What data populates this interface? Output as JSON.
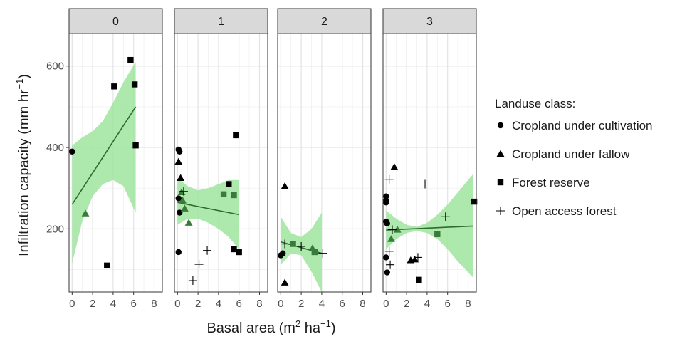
{
  "chart_data": {
    "type": "scatter",
    "xlabel": "Basal area (m",
    "xlabel_sup1": "2",
    "xlabel_mid": " ha",
    "xlabel_sup2": "−1",
    "xlabel_end": ")",
    "ylabel": "Infiltration capacity (mm hr",
    "ylabel_sup": "−1",
    "ylabel_end": ")",
    "xlim": [
      -0.3,
      8.8
    ],
    "ylim": [
      45,
      680
    ],
    "xticks": [
      0,
      2,
      4,
      6,
      8
    ],
    "yticks": [
      200,
      400,
      600
    ],
    "x_tick_labels": [
      "0",
      "2",
      "4",
      "6",
      "8"
    ],
    "y_tick_labels": [
      "200",
      "400",
      "600"
    ],
    "grid": true,
    "legend_position": "right",
    "legend": {
      "title": "Landuse class:",
      "entries": [
        {
          "name": "Cropland under cultivation",
          "shape": "circle"
        },
        {
          "name": "Cropland under fallow",
          "shape": "triangle"
        },
        {
          "name": "Forest reserve",
          "shape": "square"
        },
        {
          "name": "Open access forest",
          "shape": "plus"
        }
      ]
    },
    "colors": {
      "fit_line": "#2e6b2e",
      "ribbon": "#9fe59f",
      "strip_bg": "#d9d9d9",
      "point_black": "#000000",
      "point_green": "#3a7a3a"
    },
    "panels": [
      {
        "label": "0",
        "fit": {
          "x0": 0,
          "y0": 260,
          "x1": 6.2,
          "y1": 500
        },
        "ribbon": {
          "x": [
            0,
            1,
            2,
            3,
            4,
            5,
            6.2
          ],
          "lower": [
            115,
            220,
            280,
            310,
            320,
            305,
            240
          ],
          "upper": [
            405,
            425,
            440,
            465,
            510,
            560,
            610
          ]
        },
        "points": [
          {
            "x": 0,
            "y": 390,
            "shape": "circle",
            "color": "black"
          },
          {
            "x": 1.3,
            "y": 238,
            "shape": "triangle",
            "color": "green"
          },
          {
            "x": 3.4,
            "y": 110,
            "shape": "square",
            "color": "black"
          },
          {
            "x": 4.1,
            "y": 550,
            "shape": "square",
            "color": "black"
          },
          {
            "x": 5.7,
            "y": 615,
            "shape": "square",
            "color": "black"
          },
          {
            "x": 6.1,
            "y": 555,
            "shape": "square",
            "color": "black"
          },
          {
            "x": 6.2,
            "y": 405,
            "shape": "square",
            "color": "black"
          }
        ]
      },
      {
        "label": "1",
        "fit": {
          "x0": 0,
          "y0": 265,
          "x1": 6,
          "y1": 235
        },
        "ribbon": {
          "x": [
            0,
            1,
            2,
            3,
            4,
            5,
            6
          ],
          "lower": [
            210,
            225,
            225,
            215,
            200,
            180,
            150
          ],
          "upper": [
            325,
            305,
            295,
            300,
            310,
            320,
            320
          ]
        },
        "points": [
          {
            "x": 0.1,
            "y": 395,
            "shape": "circle",
            "color": "black"
          },
          {
            "x": 0.2,
            "y": 390,
            "shape": "circle",
            "color": "black"
          },
          {
            "x": 0.1,
            "y": 275,
            "shape": "circle",
            "color": "black"
          },
          {
            "x": 0.2,
            "y": 240,
            "shape": "circle",
            "color": "black"
          },
          {
            "x": 0.1,
            "y": 143,
            "shape": "circle",
            "color": "black"
          },
          {
            "x": 0.1,
            "y": 365,
            "shape": "triangle",
            "color": "black"
          },
          {
            "x": 0.3,
            "y": 325,
            "shape": "triangle",
            "color": "black"
          },
          {
            "x": 0.4,
            "y": 290,
            "shape": "triangle",
            "color": "green"
          },
          {
            "x": 0.5,
            "y": 270,
            "shape": "triangle",
            "color": "green"
          },
          {
            "x": 0.7,
            "y": 250,
            "shape": "triangle",
            "color": "green"
          },
          {
            "x": 1.1,
            "y": 215,
            "shape": "triangle",
            "color": "green"
          },
          {
            "x": 4.5,
            "y": 285,
            "shape": "square",
            "color": "green"
          },
          {
            "x": 5,
            "y": 310,
            "shape": "square",
            "color": "black"
          },
          {
            "x": 5.5,
            "y": 283,
            "shape": "square",
            "color": "green"
          },
          {
            "x": 5.5,
            "y": 150,
            "shape": "square",
            "color": "black"
          },
          {
            "x": 5.7,
            "y": 430,
            "shape": "square",
            "color": "black"
          },
          {
            "x": 6,
            "y": 143,
            "shape": "square",
            "color": "black"
          },
          {
            "x": 0.6,
            "y": 292,
            "shape": "plus",
            "color": "black"
          },
          {
            "x": 1.5,
            "y": 73,
            "shape": "plus",
            "color": "black"
          },
          {
            "x": 2.1,
            "y": 113,
            "shape": "plus",
            "color": "black"
          },
          {
            "x": 2.9,
            "y": 147,
            "shape": "plus",
            "color": "black"
          }
        ]
      },
      {
        "label": "2",
        "fit": {
          "x0": 0,
          "y0": 168,
          "x1": 4,
          "y1": 140
        },
        "ribbon": {
          "x": [
            0,
            1,
            2,
            3,
            4
          ],
          "lower": [
            112,
            140,
            135,
            95,
            45
          ],
          "upper": [
            230,
            190,
            180,
            200,
            240
          ]
        },
        "points": [
          {
            "x": 0,
            "y": 135,
            "shape": "circle",
            "color": "black"
          },
          {
            "x": 0.2,
            "y": 140,
            "shape": "circle",
            "color": "black"
          },
          {
            "x": 0.4,
            "y": 305,
            "shape": "triangle",
            "color": "black"
          },
          {
            "x": 0.4,
            "y": 68,
            "shape": "triangle",
            "color": "black"
          },
          {
            "x": 3.1,
            "y": 152,
            "shape": "triangle",
            "color": "green"
          },
          {
            "x": 1.2,
            "y": 163,
            "shape": "square",
            "color": "green"
          },
          {
            "x": 3.3,
            "y": 143,
            "shape": "square",
            "color": "green"
          },
          {
            "x": 0.4,
            "y": 163,
            "shape": "plus",
            "color": "black"
          },
          {
            "x": 2,
            "y": 157,
            "shape": "plus",
            "color": "black"
          },
          {
            "x": 4.1,
            "y": 140,
            "shape": "plus",
            "color": "black"
          }
        ]
      },
      {
        "label": "3",
        "fit": {
          "x0": 0,
          "y0": 197,
          "x1": 8.5,
          "y1": 207
        },
        "ribbon": {
          "x": [
            0,
            1,
            2,
            3,
            4,
            5,
            6,
            7,
            8.5
          ],
          "lower": [
            150,
            175,
            190,
            195,
            190,
            175,
            150,
            120,
            80
          ],
          "upper": [
            245,
            225,
            210,
            205,
            215,
            235,
            260,
            290,
            335
          ]
        },
        "points": [
          {
            "x": 0,
            "y": 280,
            "shape": "circle",
            "color": "black"
          },
          {
            "x": 0,
            "y": 270,
            "shape": "circle",
            "color": "black"
          },
          {
            "x": 0,
            "y": 265,
            "shape": "circle",
            "color": "black"
          },
          {
            "x": 0,
            "y": 218,
            "shape": "circle",
            "color": "black"
          },
          {
            "x": 0.1,
            "y": 213,
            "shape": "circle",
            "color": "black"
          },
          {
            "x": 0,
            "y": 130,
            "shape": "circle",
            "color": "black"
          },
          {
            "x": 0.1,
            "y": 93,
            "shape": "circle",
            "color": "black"
          },
          {
            "x": 0.8,
            "y": 352,
            "shape": "triangle",
            "color": "black"
          },
          {
            "x": 0.5,
            "y": 175,
            "shape": "triangle",
            "color": "green"
          },
          {
            "x": 1.1,
            "y": 198,
            "shape": "triangle",
            "color": "green"
          },
          {
            "x": 2.4,
            "y": 123,
            "shape": "triangle",
            "color": "black"
          },
          {
            "x": 2.8,
            "y": 125,
            "shape": "triangle",
            "color": "black"
          },
          {
            "x": 3.2,
            "y": 75,
            "shape": "square",
            "color": "black"
          },
          {
            "x": 5,
            "y": 187,
            "shape": "square",
            "color": "green"
          },
          {
            "x": 8.6,
            "y": 267,
            "shape": "square",
            "color": "black"
          },
          {
            "x": 0.3,
            "y": 322,
            "shape": "plus",
            "color": "black"
          },
          {
            "x": 0.3,
            "y": 145,
            "shape": "plus",
            "color": "black"
          },
          {
            "x": 0.4,
            "y": 112,
            "shape": "plus",
            "color": "black"
          },
          {
            "x": 0.6,
            "y": 198,
            "shape": "plus",
            "color": "black"
          },
          {
            "x": 3.1,
            "y": 130,
            "shape": "plus",
            "color": "black"
          },
          {
            "x": 3.8,
            "y": 310,
            "shape": "plus",
            "color": "black"
          },
          {
            "x": 5.8,
            "y": 230,
            "shape": "plus",
            "color": "black"
          }
        ]
      }
    ]
  }
}
